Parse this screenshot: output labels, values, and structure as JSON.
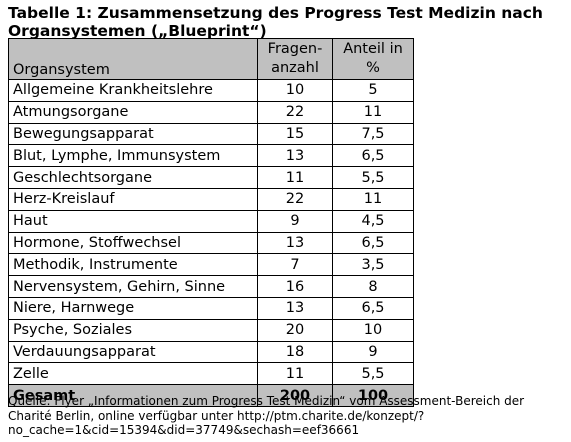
{
  "title": "Tabelle 1: Zusammensetzung des Progress Test Medizin nach Organsystemen („Blueprint“)",
  "table": {
    "headers": {
      "name": "Organsystem",
      "count_line1": "Fragen-",
      "count_line2": "anzahl",
      "share_line1": "Anteil in",
      "share_line2": "%"
    },
    "rows": [
      {
        "name": "Allgemeine Krankheitslehre",
        "count": "10",
        "share": "5"
      },
      {
        "name": "Atmungsorgane",
        "count": "22",
        "share": "11"
      },
      {
        "name": "Bewegungsapparat",
        "count": "15",
        "share": "7,5"
      },
      {
        "name": "Blut, Lymphe, Immunsystem",
        "count": "13",
        "share": "6,5"
      },
      {
        "name": "Geschlechtsorgane",
        "count": "11",
        "share": "5,5"
      },
      {
        "name": "Herz-Kreislauf",
        "count": "22",
        "share": "11"
      },
      {
        "name": "Haut",
        "count": "9",
        "share": "4,5"
      },
      {
        "name": "Hormone, Stoffwechsel",
        "count": "13",
        "share": "6,5"
      },
      {
        "name": "Methodik, Instrumente",
        "count": "7",
        "share": "3,5"
      },
      {
        "name": "Nervensystem, Gehirn, Sinne",
        "count": "16",
        "share": "8"
      },
      {
        "name": "Niere, Harnwege",
        "count": "13",
        "share": "6,5"
      },
      {
        "name": "Psyche, Soziales",
        "count": "20",
        "share": "10"
      },
      {
        "name": "Verdauungsapparat",
        "count": "18",
        "share": "9"
      },
      {
        "name": "Zelle",
        "count": "11",
        "share": "5,5"
      }
    ],
    "total": {
      "name": "Gesamt",
      "count": "200",
      "share": "100"
    }
  },
  "source": "Quelle: Flyer „Informationen zum Progress Test Medizin“ vom Assessment-Bereich der Charité Berlin, online verfügbar unter http://ptm.charite.de/konzept/?no_cache=1&cid=15394&did=37749&sechash=eef36661",
  "colors": {
    "header_background": "#c0c0c0",
    "total_background": "#c0c0c0",
    "border": "#000000"
  }
}
